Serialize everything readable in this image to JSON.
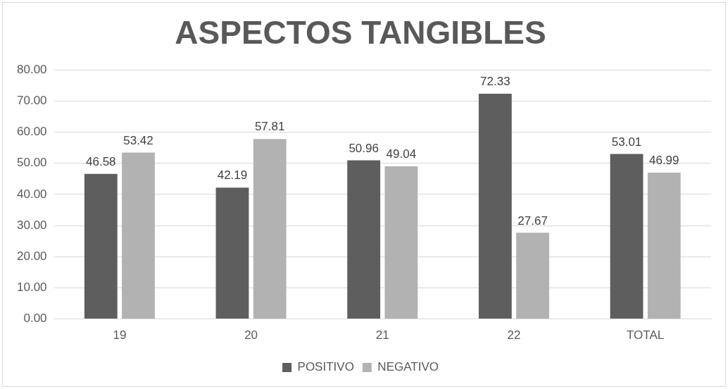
{
  "chart_data": {
    "type": "bar",
    "title": "ASPECTOS TANGIBLES",
    "categories": [
      "19",
      "20",
      "21",
      "22",
      "TOTAL"
    ],
    "series": [
      {
        "name": "POSITIVO",
        "color": "#5e5e5e",
        "values": [
          46.58,
          42.19,
          50.96,
          72.33,
          53.01
        ]
      },
      {
        "name": "NEGATIVO",
        "color": "#b2b2b2",
        "values": [
          53.42,
          57.81,
          49.04,
          27.67,
          46.99
        ]
      }
    ],
    "ylim": [
      0,
      80
    ],
    "yticks": [
      {
        "value": 0,
        "label": "0.00"
      },
      {
        "value": 10,
        "label": "10.00"
      },
      {
        "value": 20,
        "label": "20.00"
      },
      {
        "value": 30,
        "label": "30.00"
      },
      {
        "value": 40,
        "label": "40.00"
      },
      {
        "value": 50,
        "label": "50.00"
      },
      {
        "value": 60,
        "label": "60.00"
      },
      {
        "value": 70,
        "label": "70.00"
      },
      {
        "value": 80,
        "label": "80.00"
      }
    ],
    "grid": "y",
    "legend": "bottom",
    "data_labels": true
  }
}
